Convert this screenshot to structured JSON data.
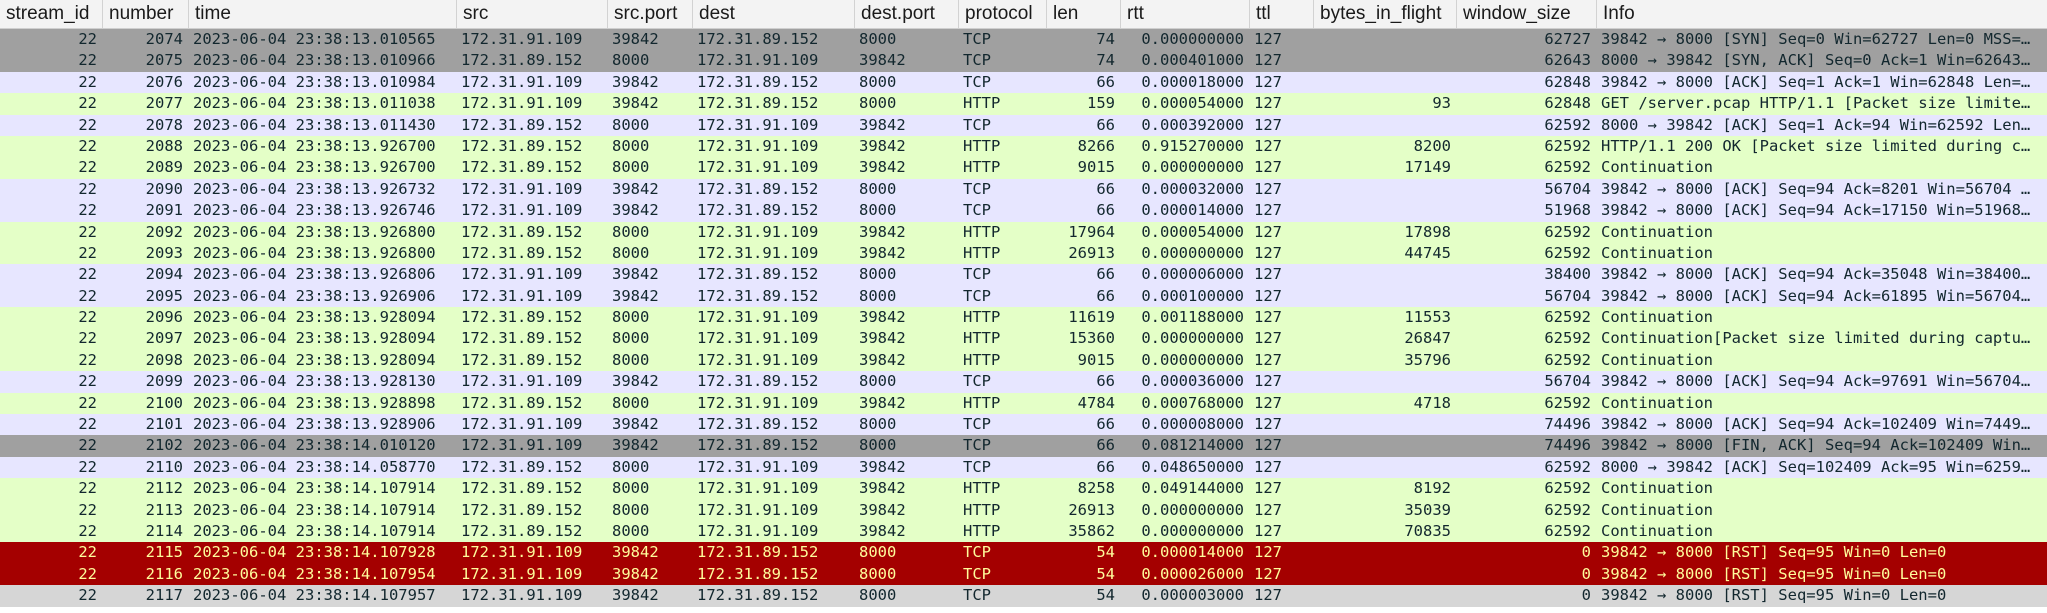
{
  "columns": [
    {
      "key": "stream_id",
      "label": "stream_id"
    },
    {
      "key": "number",
      "label": "number"
    },
    {
      "key": "time",
      "label": "time"
    },
    {
      "key": "src",
      "label": "src"
    },
    {
      "key": "src_port",
      "label": "src.port"
    },
    {
      "key": "dest",
      "label": "dest"
    },
    {
      "key": "dest_port",
      "label": "dest.port"
    },
    {
      "key": "protocol",
      "label": "protocol"
    },
    {
      "key": "len",
      "label": "len"
    },
    {
      "key": "rtt",
      "label": "rtt"
    },
    {
      "key": "ttl",
      "label": "ttl"
    },
    {
      "key": "bif",
      "label": "bytes_in_flight"
    },
    {
      "key": "win",
      "label": "window_size"
    },
    {
      "key": "info",
      "label": "Info"
    }
  ],
  "rows": [
    {
      "style": "fin",
      "stream_id": "22",
      "number": "2074",
      "time": "2023-06-04 23:38:13.010565",
      "src": "172.31.91.109",
      "src_port": "39842",
      "dest": "172.31.89.152",
      "dest_port": "8000",
      "protocol": "TCP",
      "len": "74",
      "rtt": "0.000000000",
      "ttl": "127",
      "bif": "",
      "win": "62727",
      "info": "39842 → 8000 [SYN] Seq=0 Win=62727 Len=0 MSS=…"
    },
    {
      "style": "fin",
      "stream_id": "22",
      "number": "2075",
      "time": "2023-06-04 23:38:13.010966",
      "src": "172.31.89.152",
      "src_port": "8000",
      "dest": "172.31.91.109",
      "dest_port": "39842",
      "protocol": "TCP",
      "len": "74",
      "rtt": "0.000401000",
      "ttl": "127",
      "bif": "",
      "win": "62643",
      "info": "8000 → 39842 [SYN, ACK] Seq=0 Ack=1 Win=62643…"
    },
    {
      "style": "tcp",
      "stream_id": "22",
      "number": "2076",
      "time": "2023-06-04 23:38:13.010984",
      "src": "172.31.91.109",
      "src_port": "39842",
      "dest": "172.31.89.152",
      "dest_port": "8000",
      "protocol": "TCP",
      "len": "66",
      "rtt": "0.000018000",
      "ttl": "127",
      "bif": "",
      "win": "62848",
      "info": "39842 → 8000 [ACK] Seq=1 Ack=1 Win=62848 Len=…"
    },
    {
      "style": "http",
      "stream_id": "22",
      "number": "2077",
      "time": "2023-06-04 23:38:13.011038",
      "src": "172.31.91.109",
      "src_port": "39842",
      "dest": "172.31.89.152",
      "dest_port": "8000",
      "protocol": "HTTP",
      "len": "159",
      "rtt": "0.000054000",
      "ttl": "127",
      "bif": "93",
      "win": "62848",
      "info": "GET /server.pcap HTTP/1.1 [Packet size limite…"
    },
    {
      "style": "tcp",
      "stream_id": "22",
      "number": "2078",
      "time": "2023-06-04 23:38:13.011430",
      "src": "172.31.89.152",
      "src_port": "8000",
      "dest": "172.31.91.109",
      "dest_port": "39842",
      "protocol": "TCP",
      "len": "66",
      "rtt": "0.000392000",
      "ttl": "127",
      "bif": "",
      "win": "62592",
      "info": "8000 → 39842 [ACK] Seq=1 Ack=94 Win=62592 Len…"
    },
    {
      "style": "http",
      "stream_id": "22",
      "number": "2088",
      "time": "2023-06-04 23:38:13.926700",
      "src": "172.31.89.152",
      "src_port": "8000",
      "dest": "172.31.91.109",
      "dest_port": "39842",
      "protocol": "HTTP",
      "len": "8266",
      "rtt": "0.915270000",
      "ttl": "127",
      "bif": "8200",
      "win": "62592",
      "info": "HTTP/1.1 200 OK [Packet size limited during c…"
    },
    {
      "style": "http",
      "stream_id": "22",
      "number": "2089",
      "time": "2023-06-04 23:38:13.926700",
      "src": "172.31.89.152",
      "src_port": "8000",
      "dest": "172.31.91.109",
      "dest_port": "39842",
      "protocol": "HTTP",
      "len": "9015",
      "rtt": "0.000000000",
      "ttl": "127",
      "bif": "17149",
      "win": "62592",
      "info": "Continuation"
    },
    {
      "style": "tcp",
      "stream_id": "22",
      "number": "2090",
      "time": "2023-06-04 23:38:13.926732",
      "src": "172.31.91.109",
      "src_port": "39842",
      "dest": "172.31.89.152",
      "dest_port": "8000",
      "protocol": "TCP",
      "len": "66",
      "rtt": "0.000032000",
      "ttl": "127",
      "bif": "",
      "win": "56704",
      "info": "39842 → 8000 [ACK] Seq=94 Ack=8201 Win=56704 …"
    },
    {
      "style": "tcp",
      "stream_id": "22",
      "number": "2091",
      "time": "2023-06-04 23:38:13.926746",
      "src": "172.31.91.109",
      "src_port": "39842",
      "dest": "172.31.89.152",
      "dest_port": "8000",
      "protocol": "TCP",
      "len": "66",
      "rtt": "0.000014000",
      "ttl": "127",
      "bif": "",
      "win": "51968",
      "info": "39842 → 8000 [ACK] Seq=94 Ack=17150 Win=51968…"
    },
    {
      "style": "http",
      "stream_id": "22",
      "number": "2092",
      "time": "2023-06-04 23:38:13.926800",
      "src": "172.31.89.152",
      "src_port": "8000",
      "dest": "172.31.91.109",
      "dest_port": "39842",
      "protocol": "HTTP",
      "len": "17964",
      "rtt": "0.000054000",
      "ttl": "127",
      "bif": "17898",
      "win": "62592",
      "info": "Continuation"
    },
    {
      "style": "http",
      "stream_id": "22",
      "number": "2093",
      "time": "2023-06-04 23:38:13.926800",
      "src": "172.31.89.152",
      "src_port": "8000",
      "dest": "172.31.91.109",
      "dest_port": "39842",
      "protocol": "HTTP",
      "len": "26913",
      "rtt": "0.000000000",
      "ttl": "127",
      "bif": "44745",
      "win": "62592",
      "info": "Continuation"
    },
    {
      "style": "tcp",
      "stream_id": "22",
      "number": "2094",
      "time": "2023-06-04 23:38:13.926806",
      "src": "172.31.91.109",
      "src_port": "39842",
      "dest": "172.31.89.152",
      "dest_port": "8000",
      "protocol": "TCP",
      "len": "66",
      "rtt": "0.000006000",
      "ttl": "127",
      "bif": "",
      "win": "38400",
      "info": "39842 → 8000 [ACK] Seq=94 Ack=35048 Win=38400…"
    },
    {
      "style": "tcp",
      "stream_id": "22",
      "number": "2095",
      "time": "2023-06-04 23:38:13.926906",
      "src": "172.31.91.109",
      "src_port": "39842",
      "dest": "172.31.89.152",
      "dest_port": "8000",
      "protocol": "TCP",
      "len": "66",
      "rtt": "0.000100000",
      "ttl": "127",
      "bif": "",
      "win": "56704",
      "info": "39842 → 8000 [ACK] Seq=94 Ack=61895 Win=56704…"
    },
    {
      "style": "http",
      "stream_id": "22",
      "number": "2096",
      "time": "2023-06-04 23:38:13.928094",
      "src": "172.31.89.152",
      "src_port": "8000",
      "dest": "172.31.91.109",
      "dest_port": "39842",
      "protocol": "HTTP",
      "len": "11619",
      "rtt": "0.001188000",
      "ttl": "127",
      "bif": "11553",
      "win": "62592",
      "info": "Continuation"
    },
    {
      "style": "http",
      "stream_id": "22",
      "number": "2097",
      "time": "2023-06-04 23:38:13.928094",
      "src": "172.31.89.152",
      "src_port": "8000",
      "dest": "172.31.91.109",
      "dest_port": "39842",
      "protocol": "HTTP",
      "len": "15360",
      "rtt": "0.000000000",
      "ttl": "127",
      "bif": "26847",
      "win": "62592",
      "info": "Continuation[Packet size limited during captu…"
    },
    {
      "style": "http",
      "stream_id": "22",
      "number": "2098",
      "time": "2023-06-04 23:38:13.928094",
      "src": "172.31.89.152",
      "src_port": "8000",
      "dest": "172.31.91.109",
      "dest_port": "39842",
      "protocol": "HTTP",
      "len": "9015",
      "rtt": "0.000000000",
      "ttl": "127",
      "bif": "35796",
      "win": "62592",
      "info": "Continuation"
    },
    {
      "style": "tcp",
      "stream_id": "22",
      "number": "2099",
      "time": "2023-06-04 23:38:13.928130",
      "src": "172.31.91.109",
      "src_port": "39842",
      "dest": "172.31.89.152",
      "dest_port": "8000",
      "protocol": "TCP",
      "len": "66",
      "rtt": "0.000036000",
      "ttl": "127",
      "bif": "",
      "win": "56704",
      "info": "39842 → 8000 [ACK] Seq=94 Ack=97691 Win=56704…"
    },
    {
      "style": "http",
      "stream_id": "22",
      "number": "2100",
      "time": "2023-06-04 23:38:13.928898",
      "src": "172.31.89.152",
      "src_port": "8000",
      "dest": "172.31.91.109",
      "dest_port": "39842",
      "protocol": "HTTP",
      "len": "4784",
      "rtt": "0.000768000",
      "ttl": "127",
      "bif": "4718",
      "win": "62592",
      "info": "Continuation"
    },
    {
      "style": "tcp",
      "stream_id": "22",
      "number": "2101",
      "time": "2023-06-04 23:38:13.928906",
      "src": "172.31.91.109",
      "src_port": "39842",
      "dest": "172.31.89.152",
      "dest_port": "8000",
      "protocol": "TCP",
      "len": "66",
      "rtt": "0.000008000",
      "ttl": "127",
      "bif": "",
      "win": "74496",
      "info": "39842 → 8000 [ACK] Seq=94 Ack=102409 Win=7449…"
    },
    {
      "style": "fin",
      "stream_id": "22",
      "number": "2102",
      "time": "2023-06-04 23:38:14.010120",
      "src": "172.31.91.109",
      "src_port": "39842",
      "dest": "172.31.89.152",
      "dest_port": "8000",
      "protocol": "TCP",
      "len": "66",
      "rtt": "0.081214000",
      "ttl": "127",
      "bif": "",
      "win": "74496",
      "info": "39842 → 8000 [FIN, ACK] Seq=94 Ack=102409 Win…"
    },
    {
      "style": "tcp",
      "stream_id": "22",
      "number": "2110",
      "time": "2023-06-04 23:38:14.058770",
      "src": "172.31.89.152",
      "src_port": "8000",
      "dest": "172.31.91.109",
      "dest_port": "39842",
      "protocol": "TCP",
      "len": "66",
      "rtt": "0.048650000",
      "ttl": "127",
      "bif": "",
      "win": "62592",
      "info": "8000 → 39842 [ACK] Seq=102409 Ack=95 Win=6259…"
    },
    {
      "style": "http",
      "stream_id": "22",
      "number": "2112",
      "time": "2023-06-04 23:38:14.107914",
      "src": "172.31.89.152",
      "src_port": "8000",
      "dest": "172.31.91.109",
      "dest_port": "39842",
      "protocol": "HTTP",
      "len": "8258",
      "rtt": "0.049144000",
      "ttl": "127",
      "bif": "8192",
      "win": "62592",
      "info": "Continuation"
    },
    {
      "style": "http",
      "stream_id": "22",
      "number": "2113",
      "time": "2023-06-04 23:38:14.107914",
      "src": "172.31.89.152",
      "src_port": "8000",
      "dest": "172.31.91.109",
      "dest_port": "39842",
      "protocol": "HTTP",
      "len": "26913",
      "rtt": "0.000000000",
      "ttl": "127",
      "bif": "35039",
      "win": "62592",
      "info": "Continuation"
    },
    {
      "style": "http",
      "stream_id": "22",
      "number": "2114",
      "time": "2023-06-04 23:38:14.107914",
      "src": "172.31.89.152",
      "src_port": "8000",
      "dest": "172.31.91.109",
      "dest_port": "39842",
      "protocol": "HTTP",
      "len": "35862",
      "rtt": "0.000000000",
      "ttl": "127",
      "bif": "70835",
      "win": "62592",
      "info": "Continuation"
    },
    {
      "style": "rst",
      "stream_id": "22",
      "number": "2115",
      "time": "2023-06-04 23:38:14.107928",
      "src": "172.31.91.109",
      "src_port": "39842",
      "dest": "172.31.89.152",
      "dest_port": "8000",
      "protocol": "TCP",
      "len": "54",
      "rtt": "0.000014000",
      "ttl": "127",
      "bif": "",
      "win": "0",
      "info": "39842 → 8000 [RST] Seq=95 Win=0 Len=0"
    },
    {
      "style": "rst",
      "stream_id": "22",
      "number": "2116",
      "time": "2023-06-04 23:38:14.107954",
      "src": "172.31.91.109",
      "src_port": "39842",
      "dest": "172.31.89.152",
      "dest_port": "8000",
      "protocol": "TCP",
      "len": "54",
      "rtt": "0.000026000",
      "ttl": "127",
      "bif": "",
      "win": "0",
      "info": "39842 → 8000 [RST] Seq=95 Win=0 Len=0"
    },
    {
      "style": "last",
      "stream_id": "22",
      "number": "2117",
      "time": "2023-06-04 23:38:14.107957",
      "src": "172.31.91.109",
      "src_port": "39842",
      "dest": "172.31.89.152",
      "dest_port": "8000",
      "protocol": "TCP",
      "len": "54",
      "rtt": "0.000003000",
      "ttl": "127",
      "bif": "",
      "win": "0",
      "info": "39842 → 8000 [RST] Seq=95 Win=0 Len=0"
    }
  ],
  "colors": {
    "tcp_row": "#e7e6ff",
    "http_row": "#e4ffc7",
    "fin_row": "#a0a0a0",
    "rst_row": "#a40000",
    "rst_text": "#fffc9c",
    "last_row": "#d6d6d6"
  }
}
